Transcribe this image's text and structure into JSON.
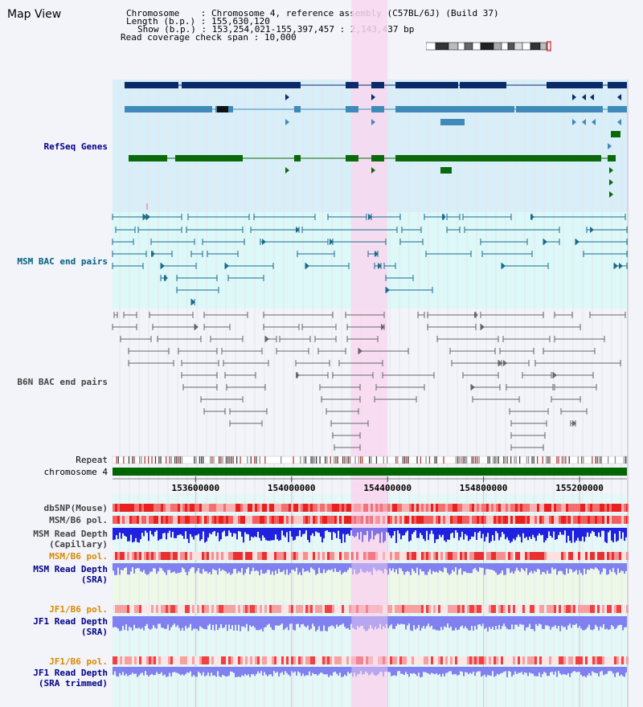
{
  "page": {
    "title": "Map View"
  },
  "header": {
    "chromosome_label": "Chromosome",
    "chromosome_value": "Chromosome 4, reference assembly (C57BL/6J) (Build 37)",
    "length_label": "Length (b.p.)",
    "length_value": "155,630,120",
    "show_label": "Show (b.p.)",
    "show_value": "153,254,021-155,397,457 : 2,143,437 bp",
    "read_span_label": "Read coverage check span",
    "read_span_value": "10,000"
  },
  "tracks": {
    "refseq": "RefSeq Genes",
    "msm_bac": "MSM BAC end pairs",
    "b6n_bac": "B6N BAC end pairs",
    "repeat": "Repeat",
    "chromosome": "chromosome 4",
    "dbsnp": "dbSNP(Mouse)",
    "msm_b6_pol_1": "MSM/B6 pol.",
    "msm_read_depth_cap_1": "MSM Read Depth",
    "msm_read_depth_cap_2": "(Capillary)",
    "msm_b6_pol_2": "MSM/B6 pol.",
    "msm_read_depth_sra_1": "MSM Read Depth",
    "msm_read_depth_sra_2": "(SRA)",
    "jf1_b6_pol_1": "JF1/B6 pol.",
    "jf1_read_depth_1": "JF1 Read Depth",
    "jf1_read_depth_2": "(SRA)",
    "jf1_b6_pol_2": "JF1/B6 pol.",
    "jf1_trim_1": "JF1 Read Depth",
    "jf1_trim_2": "(SRA trimmed)"
  },
  "axis": {
    "ticks": [
      {
        "label": "153600000",
        "pos": 153600000
      },
      {
        "label": "154000000",
        "pos": 154000000
      },
      {
        "label": "154400000",
        "pos": 154400000
      },
      {
        "label": "154800000",
        "pos": 154800000
      },
      {
        "label": "155200000",
        "pos": 155200000
      }
    ],
    "range": [
      153254021,
      155397457
    ]
  },
  "highlight": {
    "start": 154250000,
    "end": 154400000,
    "color": "#f8d8f0"
  },
  "colors": {
    "refseq_bg": "#d8eef8",
    "gene_dark": "#0a2a6a",
    "gene_mid": "#3f8ab8",
    "gene_green": "#0a6a0a",
    "msm_bg": "#dcf8f8",
    "msm_line": "#1a6a8a",
    "b6n_line": "#666666",
    "chrom_bar": "#006600",
    "depth_blue": "#2020e0",
    "depth_light": "#8080f0",
    "pol_red": "#f04040",
    "lower_bg": "#e4f8f8"
  }
}
